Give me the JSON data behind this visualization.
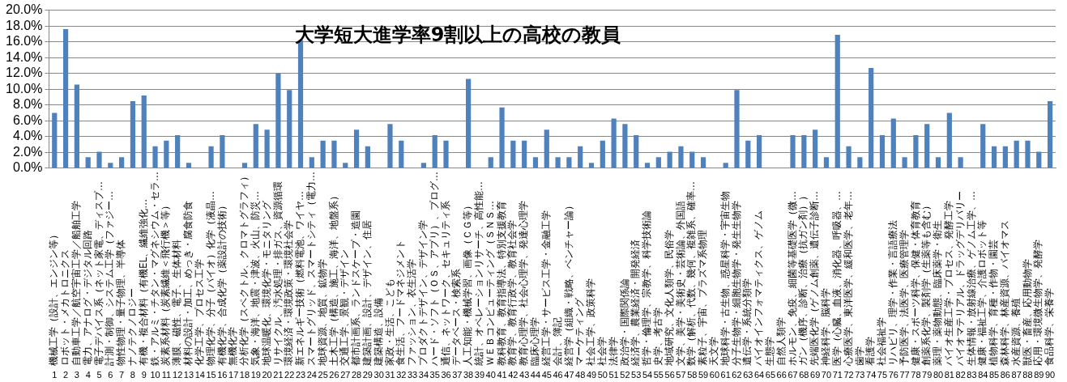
{
  "chart_data": {
    "type": "bar",
    "title": "大学短大進学率9割以上の高校の教員",
    "categories": [
      "機械工学（設計、エンジン等）\n1",
      "ロボット・メカトロニクス\n2",
      "自動車工学／航空宇宙工学／船舶工学\n3",
      "電力、アナログ・デジタル回路\n4",
      "電子デバイス系（ネット家電、ディスプ…\n5",
      "計測・制御、システム工学（ファジー…\n6",
      "物性物理・量子物理、半導体\n7",
      "ナノテクノロジー\n8",
      "有機・複合材料（有機EL、繊維強化…\n9",
      "鉄・アルミ・チタン・マグネシウム・セラ…\n10",
      "炭素系材料（炭素繊維＜飛行機＞等）\n11",
      "薄膜、磁性、電子、生体材料\n12",
      "材料の設計・加工、めっき・腐食防食\n13",
      "化学工学、プロセス工学\n14",
      "物理化学、分子（バイオ）化学（液晶…\n15",
      "有機化学、合成化学（薬設計の技術）\n16",
      "無機化学\n17",
      "分析化学（スペクトル、クロマトグラフィ）\n18",
      "気象・海洋、地震・津波、火山、防災…\n19",
      "地球温暖化、環境化学・モニタリング\n20",
      "リサイクル、汚水処理・排ガス、資源循環\n21",
      "環境経済・環境政策・環境社会学\n22",
      "新エネルギー技術（燃料電池、ワイヤ…\n23",
      "スマートグリッド、スマートシティ（電力…\n24",
      "地球資源、地質、鉱物学\n25",
      "土木工学（構造、施工、海洋、地盤系）\n26",
      "交通工学、景観・デザイン\n27",
      "都市計画系、ランドスケープ・造園\n28",
      "建築計画、設計、デザイン、住居\n29",
      "建築構造、設備\n30",
      "家政・生活、こども\n31",
      "食生活、フードマネジメント\n32",
      "ファッション、衣生活学\n33",
      "プロダクトデザイン、デザイン学\n34",
      "ハード・ソフト（ＯＳ、アプリ）、プログ…\n35",
      "通信、ネットワーク、セキュリティ系\n36",
      "データベース・検索系\n37",
      "人工知能・機械学習、画像（ＣＧ等）\n38",
      "統計、オペレーションリサーチ、高性能…\n39",
      "ＷＥＢコンピューティング（ＳＮＳ…\n40",
      "教科教育、教育指導法、特別支援教育\n41",
      "教育学、教育行政学、教育社会学\n42",
      "教育心理学、社会心理学、発達心理学\n43",
      "臨床心理学\n44",
      "経営工学・サービス工学・金融工学\n45",
      "会計、簿記\n46",
      "経営学（組織・戦略、ベンチャー論）\n47",
      "マーケティング\n48",
      "社会工学、政策科学\n49",
      "社会学\n50",
      "法律学\n51",
      "政治学・国際関係論\n52",
      "経済学、農業経済・開発経済\n53",
      "哲学・倫理学、宗教学、科学技術論\n54",
      "史学、考古学\n55",
      "地域研究、文化人類学、民俗学\n56",
      "文学、美学・美術史・芸術論、外国語\n57",
      "数学（解析、代数、幾何、複雑系、確率…\n58",
      "素粒子、宇宙、プラズマ系物理\n59",
      "天文学\n60",
      "地球科学・古生物、惑星科学・宇宙生物\n61",
      "分子生物学・細胞生物学・発生生物学\n62",
      "遺伝学・系統分類学\n63",
      "バイオインフォマティクス、ゲノム\n64",
      "生態学\n65",
      "自然人類学\n66",
      "ホルモン、免疫、細菌等基礎医学（微…\n67",
      "ガン（機序、診断、治療（抗ガン剤））\n68",
      "先端医化学（ゲノム創薬、遺伝子診断…\n69",
      "神経科学、脳科学\n70",
      "医学（心臓、血液、消化器、呼吸器、…\n71",
      "心療医学、東洋医学、緩和医学、老年…\n72",
      "歯学\n73",
      "看護学\n74",
      "社会福祉学\n75",
      "リハビリ、理学・作業・言語療法\n76",
      "予防医学、法医学、医療管理学\n77",
      "健康・スポーツ科学、保健・体育教育\n78",
      "創薬系化学、製剤学（生薬等も含む）\n79",
      "薬理・薬物動態、臨床薬学・衛生\n80",
      "バイオ生産工学・プロセス、発酵工学\n81",
      "バイオマテリアル、ドラッグデリバリー\n82",
      "生体情報・放射線治療、ゲノム工学、…\n83",
      "健康・福祉工学、介護ロボット等\n84",
      "植物科学、育種・作物・園芸\n85",
      "森林科学、林産資源、バイオマス\n86",
      "水産資源、養殖\n87",
      "獣医・畜産、応用動物学\n88",
      "応用・環境微生物学、発酵学\n89",
      "食品科学、栄養学\n90"
    ],
    "values": [
      7.0,
      17.6,
      10.6,
      1.4,
      2.1,
      0.7,
      1.4,
      8.5,
      9.2,
      2.8,
      3.5,
      4.2,
      0.7,
      0,
      2.8,
      4.2,
      0,
      0.7,
      5.6,
      4.9,
      12.0,
      9.9,
      16.2,
      1.4,
      3.5,
      3.5,
      0.7,
      4.9,
      2.8,
      0,
      5.6,
      3.5,
      0,
      0.7,
      4.2,
      3.5,
      0,
      11.3,
      0,
      1.4,
      7.7,
      3.5,
      3.5,
      1.4,
      4.9,
      1.4,
      1.4,
      2.8,
      0.7,
      3.5,
      6.3,
      5.6,
      4.2,
      0.7,
      1.4,
      2.1,
      2.8,
      2.1,
      1.4,
      0,
      0.7,
      9.9,
      3.5,
      4.2,
      0,
      0,
      4.2,
      4.2,
      4.9,
      1.4,
      16.9,
      2.8,
      1.4,
      12.7,
      4.2,
      6.3,
      1.4,
      4.2,
      5.6,
      1.4,
      7.0,
      1.4,
      0,
      5.6,
      2.8,
      2.8,
      3.5,
      3.5,
      2.1,
      8.5
    ],
    "color": "#4f81bd",
    "ylim": [
      0,
      20
    ],
    "yticks": [
      {
        "value": 0,
        "label": "0.0%"
      },
      {
        "value": 2,
        "label": "2.0%"
      },
      {
        "value": 4,
        "label": "4.0%"
      },
      {
        "value": 6,
        "label": "6.0%"
      },
      {
        "value": 8,
        "label": "8.0%"
      },
      {
        "value": 10,
        "label": "10.0%"
      },
      {
        "value": 12,
        "label": "12.0%"
      },
      {
        "value": 14,
        "label": "14.0%"
      },
      {
        "value": 16,
        "label": "16.0%"
      },
      {
        "value": 18,
        "label": "18.0%"
      },
      {
        "value": 20,
        "label": "20.0%"
      }
    ],
    "grid": "y",
    "legend": false
  }
}
